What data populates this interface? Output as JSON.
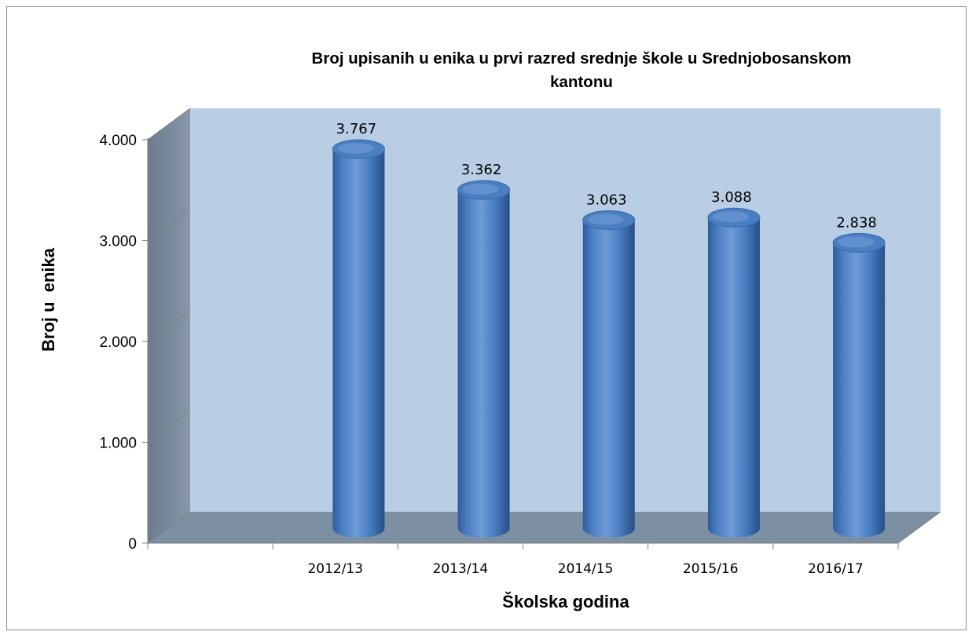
{
  "chart_data": {
    "type": "bar",
    "title": "Broj upisanih u  enika u prvi razred srednje škole u Srednjobosanskom kantonu",
    "title_lines": [
      "Broj upisanih u  enika u prvi razred srednje škole u Srednjobosanskom",
      "kantonu"
    ],
    "xlabel": "Školska godina",
    "ylabel": "Broj u  enika",
    "categories": [
      "2012/13",
      "2013/14",
      "2014/15",
      "2015/16",
      "2016/17"
    ],
    "values": [
      3767,
      3362,
      3063,
      3088,
      2838
    ],
    "data_labels": [
      "3.767",
      "3.362",
      "3.063",
      "3.088",
      "2.838"
    ],
    "ylim": [
      0,
      4000
    ],
    "yticks": [
      0,
      1000,
      2000,
      3000,
      4000
    ],
    "ytick_labels": [
      "0",
      "1.000",
      "2.000",
      "3.000",
      "4.000"
    ],
    "grid": false,
    "legend": "none",
    "style": "3d-cylinder",
    "colors": {
      "bar": "#4a7ec3",
      "bar_dark": "#2f5d9a",
      "bar_light": "#8fb3e2",
      "back_wall": "#b9cde4",
      "side_wall": "#7a8a9c",
      "floor": "#7d8fa3"
    }
  }
}
